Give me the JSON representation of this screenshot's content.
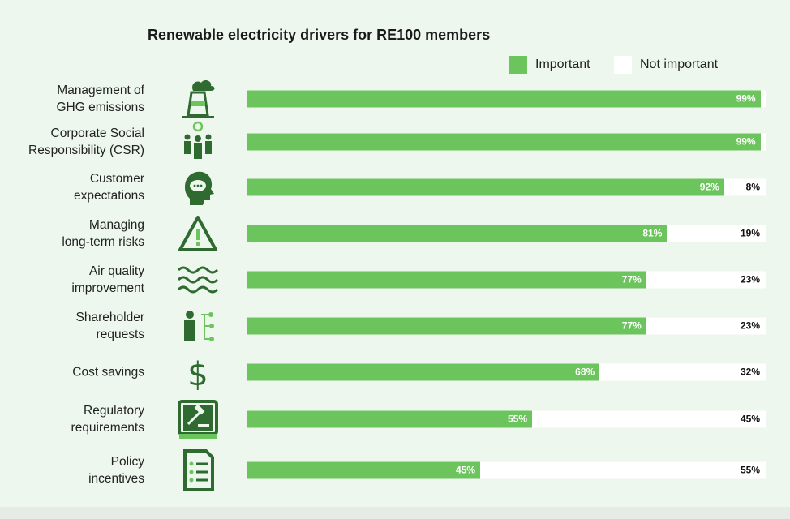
{
  "chart_data": {
    "type": "bar",
    "orientation": "horizontal-stacked",
    "title": "Renewable electricity drivers for RE100 members",
    "legend": [
      {
        "label": "Important",
        "color": "#6cc55c"
      },
      {
        "label": "Not important",
        "color": "#ffffff"
      }
    ],
    "legend_position": "top-right",
    "xlim": [
      0,
      100
    ],
    "categories": [
      {
        "label": [
          "Management of",
          "GHG emissions"
        ],
        "icon": "factory-emissions-icon",
        "important": 99,
        "not_important": 1,
        "important_label": "99%",
        "not_important_label": ""
      },
      {
        "label": [
          "Corporate Social",
          "Responsibility (CSR)"
        ],
        "icon": "team-gear-icon",
        "important": 99,
        "not_important": 1,
        "important_label": "99%",
        "not_important_label": ""
      },
      {
        "label": [
          "Customer",
          "expectations"
        ],
        "icon": "head-speech-icon",
        "important": 92,
        "not_important": 8,
        "important_label": "92%",
        "not_important_label": "8%"
      },
      {
        "label": [
          "Managing",
          "long-term risks"
        ],
        "icon": "warning-triangle-icon",
        "important": 81,
        "not_important": 19,
        "important_label": "81%",
        "not_important_label": "19%"
      },
      {
        "label": [
          "Air quality",
          "improvement"
        ],
        "icon": "air-waves-icon",
        "important": 77,
        "not_important": 23,
        "important_label": "77%",
        "not_important_label": "23%"
      },
      {
        "label": [
          "Shareholder",
          "requests"
        ],
        "icon": "shareholder-icon",
        "important": 77,
        "not_important": 23,
        "important_label": "77%",
        "not_important_label": "23%"
      },
      {
        "label": [
          "Cost savings"
        ],
        "icon": "dollar-icon",
        "important": 68,
        "not_important": 32,
        "important_label": "68%",
        "not_important_label": "32%"
      },
      {
        "label": [
          "Regulatory",
          "requirements"
        ],
        "icon": "gavel-book-icon",
        "important": 55,
        "not_important": 45,
        "important_label": "55%",
        "not_important_label": "45%"
      },
      {
        "label": [
          "Policy",
          "incentives"
        ],
        "icon": "policy-document-icon",
        "important": 45,
        "not_important": 55,
        "important_label": "45%",
        "not_important_label": "55%"
      }
    ]
  }
}
